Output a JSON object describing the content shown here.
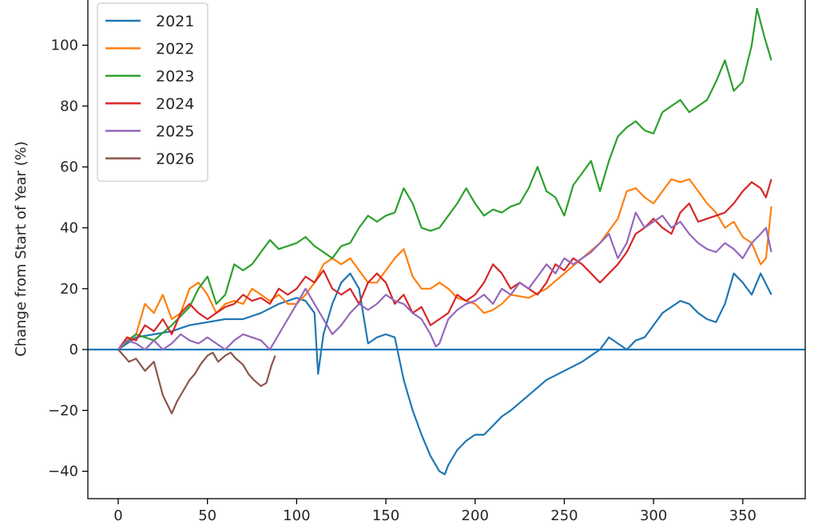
{
  "chart_data": {
    "type": "line",
    "title": "",
    "xlabel": "",
    "ylabel": "Change from Start of Year (%)",
    "xlim": [
      -17,
      385
    ],
    "ylim": [
      -49,
      118
    ],
    "xticks": [
      0,
      50,
      100,
      150,
      200,
      250,
      300,
      350
    ],
    "yticks": [
      -40,
      -20,
      0,
      20,
      40,
      60,
      80,
      100
    ],
    "grid": false,
    "legend": "top-left",
    "reference_line": {
      "y": 0,
      "color": "#1f77b4"
    },
    "series": [
      {
        "name": "2021",
        "color": "#1f77b4",
        "x": [
          0,
          10,
          20,
          30,
          40,
          50,
          60,
          70,
          80,
          90,
          100,
          105,
          110,
          112,
          115,
          120,
          125,
          130,
          135,
          140,
          145,
          150,
          155,
          160,
          165,
          170,
          175,
          180,
          183,
          185,
          190,
          195,
          200,
          205,
          210,
          215,
          220,
          230,
          240,
          250,
          260,
          265,
          270,
          275,
          280,
          285,
          290,
          295,
          300,
          305,
          310,
          315,
          320,
          325,
          330,
          335,
          340,
          345,
          350,
          355,
          360,
          366
        ],
        "y": [
          0,
          4,
          5,
          6,
          8,
          9,
          10,
          10,
          12,
          15,
          17,
          16,
          12,
          -8,
          5,
          15,
          22,
          25,
          20,
          2,
          4,
          5,
          4,
          -10,
          -20,
          -28,
          -35,
          -40,
          -41,
          -38,
          -33,
          -30,
          -28,
          -28,
          -25,
          -22,
          -20,
          -15,
          -10,
          -7,
          -4,
          -2,
          0,
          4,
          2,
          0,
          3,
          4,
          8,
          12,
          14,
          16,
          15,
          12,
          10,
          9,
          15,
          25,
          22,
          18,
          25,
          18
        ]
      },
      {
        "name": "2022",
        "color": "#ff7f0e",
        "x": [
          0,
          5,
          10,
          15,
          20,
          25,
          30,
          35,
          40,
          45,
          50,
          55,
          60,
          65,
          70,
          75,
          80,
          85,
          90,
          95,
          100,
          105,
          110,
          115,
          120,
          125,
          130,
          135,
          140,
          145,
          150,
          155,
          160,
          165,
          170,
          175,
          180,
          185,
          190,
          195,
          200,
          205,
          210,
          215,
          220,
          230,
          240,
          250,
          260,
          270,
          280,
          285,
          290,
          295,
          300,
          305,
          310,
          315,
          320,
          325,
          330,
          335,
          340,
          345,
          350,
          355,
          360,
          363,
          366
        ],
        "y": [
          0,
          3,
          5,
          15,
          12,
          18,
          10,
          12,
          20,
          22,
          18,
          12,
          15,
          16,
          15,
          20,
          18,
          16,
          18,
          15,
          15,
          18,
          22,
          28,
          30,
          28,
          30,
          26,
          22,
          22,
          26,
          30,
          33,
          24,
          20,
          20,
          22,
          20,
          17,
          16,
          15,
          12,
          13,
          15,
          18,
          17,
          20,
          25,
          30,
          35,
          43,
          52,
          53,
          50,
          48,
          52,
          56,
          55,
          56,
          52,
          48,
          45,
          40,
          42,
          37,
          35,
          28,
          30,
          47
        ]
      },
      {
        "name": "2023",
        "color": "#2ca02c",
        "x": [
          0,
          10,
          20,
          30,
          40,
          45,
          50,
          55,
          60,
          65,
          70,
          75,
          80,
          85,
          90,
          100,
          105,
          110,
          115,
          120,
          125,
          130,
          135,
          140,
          145,
          150,
          155,
          160,
          165,
          170,
          175,
          180,
          185,
          190,
          195,
          200,
          205,
          210,
          215,
          220,
          225,
          230,
          235,
          240,
          245,
          250,
          255,
          260,
          265,
          270,
          275,
          280,
          285,
          290,
          295,
          300,
          305,
          310,
          315,
          320,
          325,
          330,
          335,
          340,
          345,
          350,
          355,
          358,
          362,
          366
        ],
        "y": [
          0,
          5,
          3,
          8,
          14,
          20,
          24,
          15,
          18,
          28,
          26,
          28,
          32,
          36,
          33,
          35,
          37,
          34,
          32,
          30,
          34,
          35,
          40,
          44,
          42,
          44,
          45,
          53,
          48,
          40,
          39,
          40,
          44,
          48,
          53,
          48,
          44,
          46,
          45,
          47,
          48,
          53,
          60,
          52,
          50,
          44,
          54,
          58,
          62,
          52,
          62,
          70,
          73,
          75,
          72,
          71,
          78,
          80,
          82,
          78,
          80,
          82,
          88,
          95,
          85,
          88,
          100,
          112,
          103,
          95
        ]
      },
      {
        "name": "2024",
        "color": "#d62728",
        "x": [
          0,
          5,
          10,
          15,
          20,
          25,
          30,
          35,
          40,
          45,
          50,
          55,
          60,
          65,
          70,
          75,
          80,
          85,
          90,
          95,
          100,
          105,
          110,
          115,
          120,
          125,
          130,
          135,
          140,
          145,
          150,
          155,
          160,
          165,
          170,
          175,
          180,
          185,
          190,
          195,
          200,
          205,
          210,
          215,
          220,
          225,
          230,
          235,
          240,
          245,
          250,
          255,
          260,
          265,
          270,
          275,
          280,
          285,
          290,
          295,
          300,
          305,
          310,
          315,
          320,
          325,
          330,
          335,
          340,
          345,
          350,
          355,
          360,
          363,
          366
        ],
        "y": [
          0,
          4,
          3,
          8,
          6,
          10,
          5,
          12,
          15,
          12,
          10,
          12,
          14,
          15,
          18,
          16,
          17,
          15,
          20,
          18,
          20,
          24,
          22,
          26,
          20,
          18,
          20,
          15,
          22,
          25,
          22,
          15,
          18,
          12,
          14,
          8,
          10,
          12,
          18,
          16,
          18,
          22,
          28,
          25,
          20,
          22,
          20,
          18,
          22,
          28,
          26,
          30,
          28,
          25,
          22,
          25,
          28,
          32,
          38,
          40,
          43,
          40,
          38,
          45,
          48,
          42,
          43,
          44,
          45,
          48,
          52,
          55,
          53,
          50,
          56
        ]
      },
      {
        "name": "2025",
        "color": "#9467bd",
        "x": [
          0,
          5,
          10,
          15,
          20,
          25,
          30,
          35,
          40,
          45,
          50,
          55,
          60,
          65,
          70,
          75,
          80,
          85,
          90,
          95,
          100,
          105,
          110,
          115,
          120,
          125,
          130,
          135,
          140,
          145,
          150,
          155,
          160,
          165,
          170,
          175,
          178,
          180,
          185,
          190,
          195,
          200,
          205,
          210,
          215,
          220,
          225,
          230,
          235,
          240,
          245,
          250,
          255,
          260,
          265,
          270,
          275,
          280,
          285,
          290,
          295,
          300,
          305,
          310,
          315,
          320,
          325,
          330,
          335,
          340,
          345,
          350,
          355,
          360,
          363,
          366
        ],
        "y": [
          0,
          3,
          2,
          0,
          3,
          0,
          2,
          5,
          3,
          2,
          4,
          2,
          0,
          3,
          5,
          4,
          3,
          0,
          5,
          10,
          15,
          20,
          15,
          10,
          5,
          8,
          12,
          15,
          13,
          15,
          18,
          16,
          15,
          12,
          10,
          5,
          1,
          2,
          10,
          13,
          15,
          16,
          18,
          15,
          20,
          18,
          22,
          20,
          24,
          28,
          25,
          30,
          28,
          30,
          32,
          35,
          38,
          30,
          35,
          45,
          40,
          42,
          44,
          40,
          42,
          38,
          35,
          33,
          32,
          35,
          33,
          30,
          35,
          38,
          40,
          32
        ]
      },
      {
        "name": "2026",
        "color": "#8c564b",
        "x": [
          0,
          3,
          6,
          10,
          15,
          20,
          25,
          30,
          33,
          36,
          40,
          43,
          46,
          50,
          53,
          56,
          60,
          63,
          66,
          70,
          73,
          76,
          80,
          83,
          86,
          88
        ],
        "y": [
          0,
          -2,
          -4,
          -3,
          -7,
          -4,
          -15,
          -21,
          -17,
          -14,
          -10,
          -8,
          -5,
          -2,
          -1,
          -4,
          -2,
          -1,
          -3,
          -5,
          -8,
          -10,
          -12,
          -11,
          -5,
          -2
        ]
      }
    ]
  }
}
